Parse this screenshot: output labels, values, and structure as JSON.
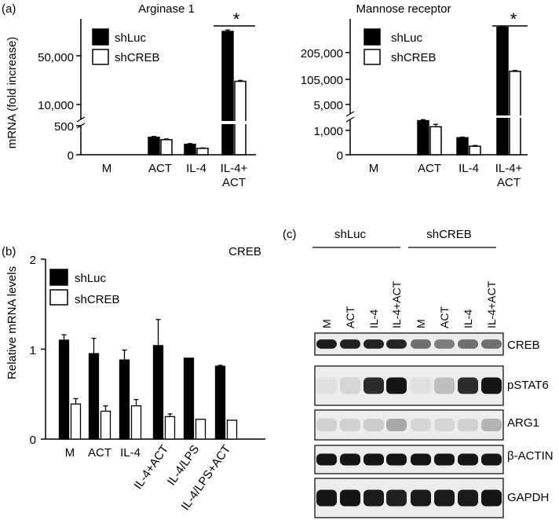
{
  "panel_labels": {
    "a": "(a)",
    "b": "(b)",
    "c": "(c)"
  },
  "colors": {
    "shLuc": "#000000",
    "shCREB": "#ffffff",
    "outline": "#000000"
  },
  "chart_data": [
    {
      "id": "arginase",
      "type": "bar",
      "title": "Arginase 1",
      "ylabel": "mRNA (fold increase)",
      "xlabel": "",
      "axis_break": true,
      "y_ticks_upper": [
        "50,000",
        "10,000"
      ],
      "y_ticks_lower": [
        "500",
        "0"
      ],
      "categories": [
        "M",
        "ACT",
        "IL-4",
        "IL-4+\nACT"
      ],
      "series": [
        {
          "name": "shLuc",
          "values": [
            0,
            300,
            180,
            70000
          ],
          "errors": [
            0,
            15,
            12,
            1200
          ]
        },
        {
          "name": "shCREB",
          "values": [
            0,
            260,
            110,
            29000
          ],
          "errors": [
            0,
            12,
            8,
            700
          ]
        }
      ],
      "annotation": "*",
      "legend": "top-left"
    },
    {
      "id": "mannose",
      "type": "bar",
      "title": "Mannose receptor",
      "ylabel": "",
      "xlabel": "",
      "axis_break": true,
      "y_ticks_upper": [
        "205,000",
        "105,000",
        "5,000"
      ],
      "y_ticks_lower": [
        "1,000",
        "0"
      ],
      "categories": [
        "M",
        "ACT",
        "IL-4",
        "IL-4+\nACT"
      ],
      "series": [
        {
          "name": "shLuc",
          "values": [
            0,
            1400,
            700,
            300000
          ],
          "errors": [
            0,
            40,
            25,
            4000
          ]
        },
        {
          "name": "shCREB",
          "values": [
            0,
            1150,
            350,
            135000
          ],
          "errors": [
            0,
            100,
            30,
            3000
          ]
        }
      ],
      "annotation": "*",
      "legend": "top-left"
    },
    {
      "id": "creb",
      "type": "bar",
      "title": "CREB",
      "ylabel": "Relative mRNA levels",
      "xlabel": "",
      "ylim": [
        0,
        2
      ],
      "y_ticks": [
        "2",
        "1",
        "0"
      ],
      "categories": [
        "M",
        "ACT",
        "IL-4",
        "IL-4+ACT",
        "IL-4/LPS",
        "IL-4/LPS+ACT"
      ],
      "series": [
        {
          "name": "shLuc",
          "values": [
            1.1,
            0.95,
            0.88,
            1.04,
            0.9,
            0.81
          ],
          "errors": [
            0.06,
            0.17,
            0.11,
            0.29,
            0.0,
            0.01
          ]
        },
        {
          "name": "shCREB",
          "values": [
            0.39,
            0.31,
            0.37,
            0.25,
            0.22,
            0.21
          ],
          "errors": [
            0.06,
            0.06,
            0.07,
            0.03,
            0.0,
            0.0
          ]
        }
      ],
      "legend": "top-left"
    }
  ],
  "western": {
    "groups": [
      "shLuc",
      "shCREB"
    ],
    "lanes": [
      "M",
      "ACT",
      "IL-4",
      "IL-4+ACT",
      "M",
      "ACT",
      "IL-4",
      "IL-4+ACT"
    ],
    "blots": [
      {
        "label": "CREB",
        "intensities": [
          0.92,
          0.9,
          0.9,
          0.88,
          0.55,
          0.5,
          0.55,
          0.55
        ]
      },
      {
        "label": "pSTAT6",
        "intensities": [
          0.05,
          0.1,
          0.85,
          0.95,
          0.05,
          0.2,
          0.85,
          0.95
        ]
      },
      {
        "label": "ARG1",
        "intensities": [
          0.12,
          0.12,
          0.14,
          0.3,
          0.1,
          0.1,
          0.12,
          0.25
        ]
      },
      {
        "label": "β-ACTIN",
        "intensities": [
          0.95,
          0.95,
          0.95,
          0.95,
          0.95,
          0.95,
          0.95,
          0.95
        ]
      },
      {
        "label": "GAPDH",
        "intensities": [
          0.95,
          0.95,
          0.92,
          0.9,
          0.93,
          0.93,
          0.93,
          0.95
        ]
      }
    ]
  }
}
